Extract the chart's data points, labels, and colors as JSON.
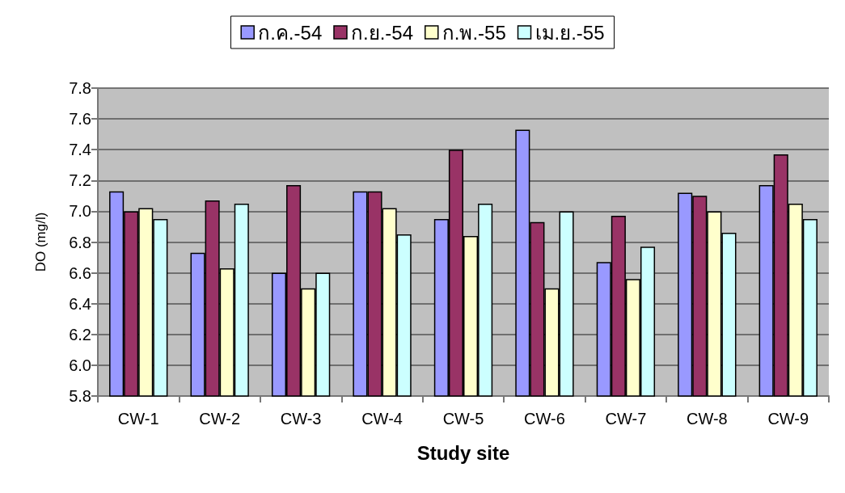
{
  "chart_data": {
    "type": "bar",
    "xlabel": "Study site",
    "ylabel": "DO (mg/l)",
    "categories": [
      "CW-1",
      "CW-2",
      "CW-3",
      "CW-4",
      "CW-5",
      "CW-6",
      "CW-7",
      "CW-8",
      "CW-9"
    ],
    "series": [
      {
        "name": "ก.ค.-54",
        "color": "#9999ff",
        "values": [
          7.13,
          6.73,
          6.6,
          7.13,
          6.95,
          7.53,
          6.67,
          7.12,
          7.17
        ]
      },
      {
        "name": "ก.ย.-54",
        "color": "#993366",
        "values": [
          7.0,
          7.07,
          7.17,
          7.13,
          7.4,
          6.93,
          6.97,
          7.1,
          7.37
        ]
      },
      {
        "name": "ก.พ.-55",
        "color": "#ffffcc",
        "values": [
          7.02,
          6.63,
          6.5,
          7.02,
          6.84,
          6.5,
          6.56,
          7.0,
          7.05
        ]
      },
      {
        "name": "เม.ย.-55",
        "color": "#ccffff",
        "values": [
          6.95,
          7.05,
          6.6,
          6.85,
          7.05,
          7.0,
          6.77,
          6.86,
          6.95
        ]
      }
    ],
    "ylim": [
      5.8,
      7.8
    ],
    "yticks": [
      5.8,
      {
        "value": 6,
        "label": "6.0"
      },
      6.2,
      6.4,
      6.6,
      6.8,
      {
        "value": 7,
        "label": "7.0"
      },
      7.2,
      7.4,
      7.6,
      7.8
    ],
    "grid": "y",
    "legend": "top"
  }
}
